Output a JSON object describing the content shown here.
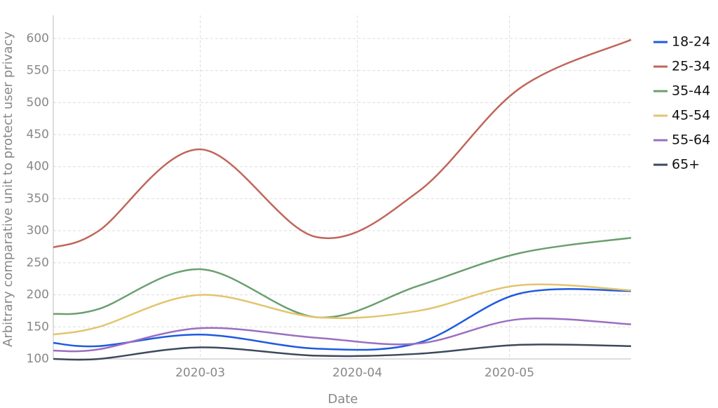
{
  "chart_data": {
    "type": "line",
    "x_label": "Date",
    "y_label": "Arbitrary comparative unit to protect user privacy",
    "x": [
      "2020-02-01",
      "2020-02-10",
      "2020-03-01",
      "2020-03-24",
      "2020-04-13",
      "2020-05-03",
      "2020-05-25"
    ],
    "xlim": [
      "2020-02-01",
      "2020-05-25"
    ],
    "xticks": [
      {
        "value": "2020-03-01",
        "label": "2020-03"
      },
      {
        "value": "2020-04-01",
        "label": "2020-04"
      },
      {
        "value": "2020-05-01",
        "label": "2020-05"
      }
    ],
    "ylim": [
      100,
      625
    ],
    "yticks": [
      100,
      150,
      200,
      250,
      300,
      350,
      400,
      450,
      500,
      550,
      600
    ],
    "grid": true,
    "legend": "right",
    "series": [
      {
        "name": "18-24",
        "color": "#1f5ae0",
        "values": [
          125,
          120,
          138,
          116,
          125,
          202,
          206
        ]
      },
      {
        "name": "25-34",
        "color": "#c0665a",
        "values": [
          274,
          300,
          427,
          290,
          361,
          522,
          598
        ]
      },
      {
        "name": "35-44",
        "color": "#6a9f6f",
        "values": [
          170,
          178,
          240,
          165,
          214,
          265,
          289
        ]
      },
      {
        "name": "45-54",
        "color": "#e3c46e",
        "values": [
          138,
          150,
          200,
          165,
          175,
          215,
          207
        ]
      },
      {
        "name": "55-64",
        "color": "#9a6fc0",
        "values": [
          113,
          115,
          148,
          133,
          124,
          162,
          154
        ]
      },
      {
        "name": "65+",
        "color": "#3c4a5c",
        "values": [
          100,
          100,
          118,
          105,
          108,
          122,
          120
        ]
      }
    ]
  }
}
